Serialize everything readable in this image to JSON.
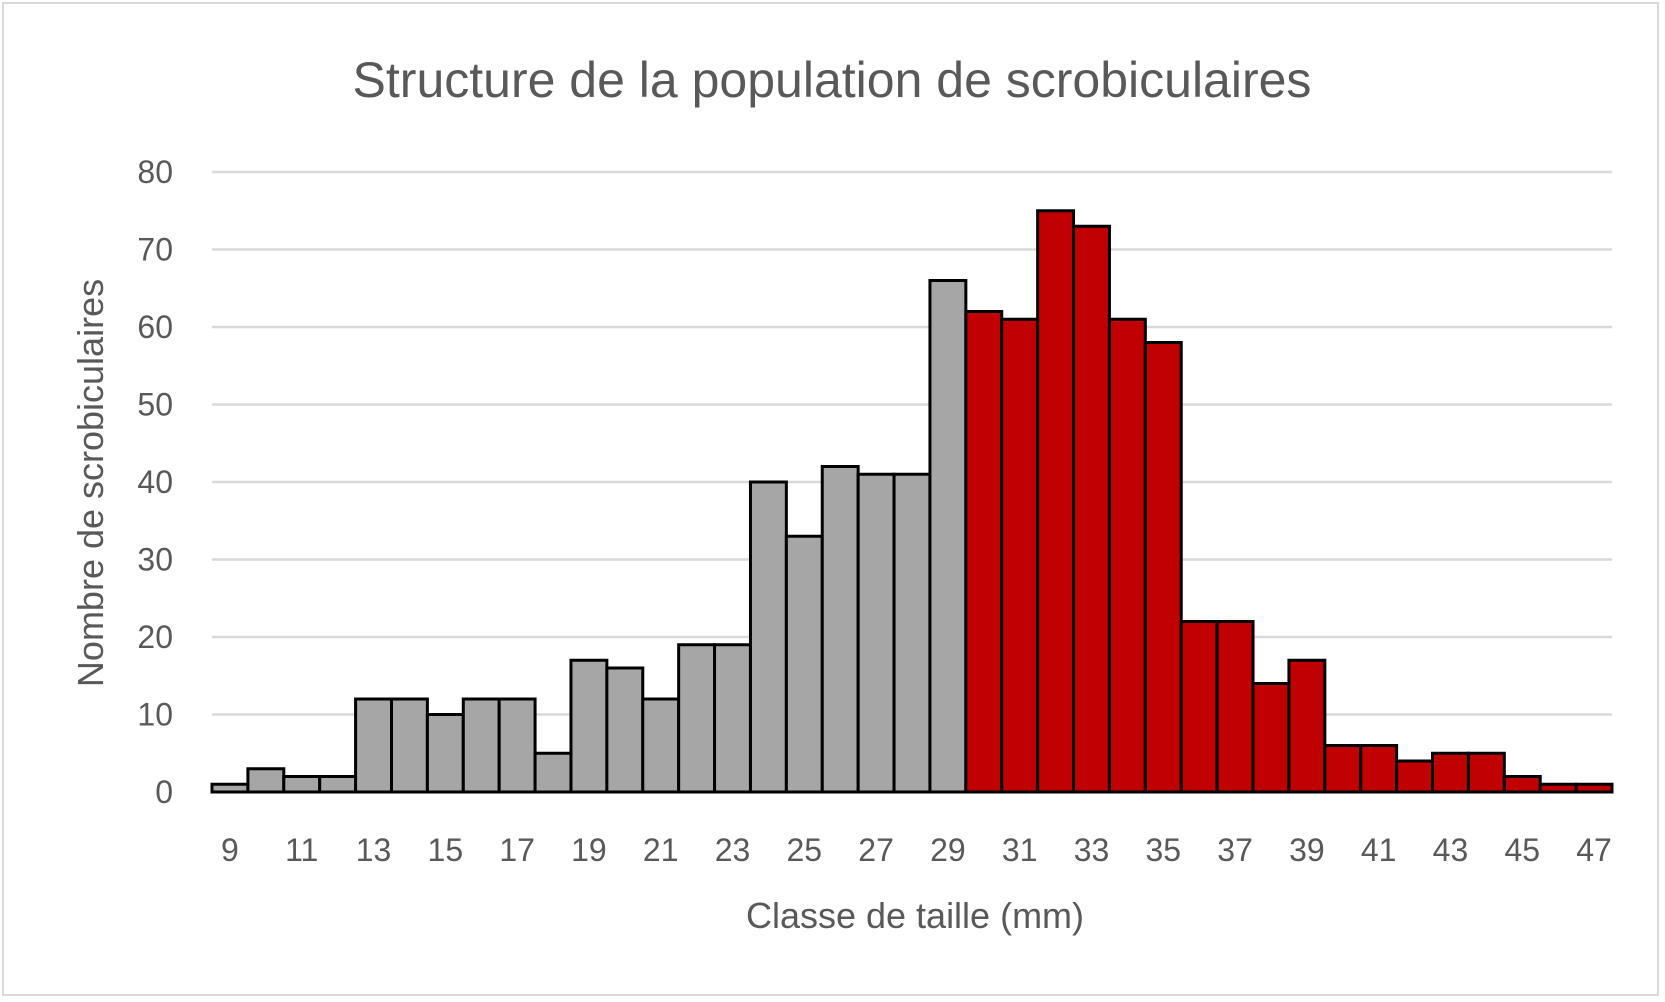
{
  "chart_data": {
    "type": "bar",
    "title": "Structure de la population de scrobiculaires",
    "xlabel": "Classe de taille (mm)",
    "ylabel": "Nombre de scrobiculaires",
    "ylim": [
      0,
      80
    ],
    "yticks": [
      "0",
      "10",
      "20",
      "30",
      "40",
      "50",
      "60",
      "70",
      "80"
    ],
    "categories": [
      "9",
      "10",
      "11",
      "12",
      "13",
      "14",
      "15",
      "16",
      "17",
      "18",
      "19",
      "20",
      "21",
      "22",
      "23",
      "24",
      "25",
      "26",
      "27",
      "28",
      "29",
      "30",
      "31",
      "32",
      "33",
      "34",
      "35",
      "36",
      "37",
      "38",
      "39",
      "40",
      "41",
      "42",
      "43",
      "44",
      "45",
      "46",
      "47"
    ],
    "xtick_labels_shown": [
      "9",
      "11",
      "13",
      "15",
      "17",
      "19",
      "21",
      "23",
      "25",
      "27",
      "29",
      "31",
      "33",
      "35",
      "37",
      "39",
      "41",
      "43",
      "45",
      "47"
    ],
    "values": [
      1,
      3,
      2,
      2,
      12,
      12,
      10,
      12,
      12,
      5,
      17,
      16,
      12,
      19,
      19,
      40,
      33,
      42,
      41,
      41,
      66,
      62,
      61,
      75,
      73,
      61,
      58,
      22,
      22,
      14,
      17,
      6,
      6,
      4,
      5,
      5,
      2,
      1,
      1
    ],
    "colors": {
      "below_30": "#a6a6a6",
      "from_30": "#c00000"
    },
    "color_threshold_category": "30",
    "grid": true,
    "legend": "none"
  }
}
